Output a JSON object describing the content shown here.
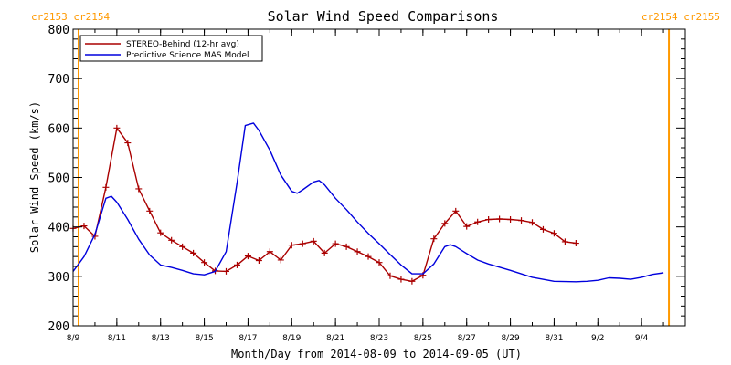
{
  "header": {
    "left_rotation": "cr2153 cr2154",
    "right_rotation": "cr2154 cr2155"
  },
  "colors": {
    "stereo": "#aa0000",
    "model": "#0000dd",
    "rotation_marker": "#ff9900",
    "axis": "#000000"
  },
  "chart_data": {
    "type": "line",
    "title": "Solar Wind Speed Comparisons",
    "xlabel": "Month/Day from 2014-08-09 to 2014-09-05 (UT)",
    "ylabel": "Solar Wind Speed (km/s)",
    "xlim": [
      "2014-08-09",
      "2014-09-05"
    ],
    "ylim": [
      200,
      800
    ],
    "x_ticks": [
      {
        "date": "2014-08-09",
        "label": "8/9"
      },
      {
        "date": "2014-08-11",
        "label": "8/11"
      },
      {
        "date": "2014-08-13",
        "label": "8/13"
      },
      {
        "date": "2014-08-15",
        "label": "8/15"
      },
      {
        "date": "2014-08-17",
        "label": "8/17"
      },
      {
        "date": "2014-08-19",
        "label": "8/19"
      },
      {
        "date": "2014-08-21",
        "label": "8/21"
      },
      {
        "date": "2014-08-23",
        "label": "8/23"
      },
      {
        "date": "2014-08-25",
        "label": "8/25"
      },
      {
        "date": "2014-08-27",
        "label": "8/27"
      },
      {
        "date": "2014-08-29",
        "label": "8/29"
      },
      {
        "date": "2014-08-31",
        "label": "8/31"
      },
      {
        "date": "2014-09-02",
        "label": "9/2"
      },
      {
        "date": "2014-09-04",
        "label": "9/4"
      }
    ],
    "y_ticks": [
      200,
      300,
      400,
      500,
      600,
      700,
      800
    ],
    "rotation_boundaries": [
      "2014-08-09 06:00",
      "2014-09-05 06:00"
    ],
    "legend_position": "top-left",
    "series": [
      {
        "name": "STEREO-Behind (12-hr avg)",
        "color": "#aa0000",
        "markers": true,
        "points": [
          [
            "2014-08-09 00:00",
            397
          ],
          [
            "2014-08-09 12:00",
            402
          ],
          [
            "2014-08-10 00:00",
            381
          ],
          [
            "2014-08-10 12:00",
            480
          ],
          [
            "2014-08-11 00:00",
            600
          ],
          [
            "2014-08-11 12:00",
            570
          ],
          [
            "2014-08-12 00:00",
            477
          ],
          [
            "2014-08-12 12:00",
            432
          ],
          [
            "2014-08-13 00:00",
            388
          ],
          [
            "2014-08-13 12:00",
            373
          ],
          [
            "2014-08-14 00:00",
            360
          ],
          [
            "2014-08-14 12:00",
            347
          ],
          [
            "2014-08-15 00:00",
            328
          ],
          [
            "2014-08-15 12:00",
            311
          ],
          [
            "2014-08-16 00:00",
            310
          ],
          [
            "2014-08-16 12:00",
            323
          ],
          [
            "2014-08-17 00:00",
            341
          ],
          [
            "2014-08-17 12:00",
            332
          ],
          [
            "2014-08-18 00:00",
            350
          ],
          [
            "2014-08-18 12:00",
            333
          ],
          [
            "2014-08-19 00:00",
            363
          ],
          [
            "2014-08-19 12:00",
            366
          ],
          [
            "2014-08-20 00:00",
            371
          ],
          [
            "2014-08-20 12:00",
            347
          ],
          [
            "2014-08-21 00:00",
            366
          ],
          [
            "2014-08-21 12:00",
            360
          ],
          [
            "2014-08-22 00:00",
            350
          ],
          [
            "2014-08-22 12:00",
            340
          ],
          [
            "2014-08-23 00:00",
            328
          ],
          [
            "2014-08-23 12:00",
            301
          ],
          [
            "2014-08-24 00:00",
            294
          ],
          [
            "2014-08-24 12:00",
            290
          ],
          [
            "2014-08-25 00:00",
            302
          ],
          [
            "2014-08-25 12:00",
            376
          ],
          [
            "2014-08-26 00:00",
            407
          ],
          [
            "2014-08-26 12:00",
            432
          ],
          [
            "2014-08-27 00:00",
            401
          ],
          [
            "2014-08-27 12:00",
            410
          ],
          [
            "2014-08-28 00:00",
            415
          ],
          [
            "2014-08-28 12:00",
            416
          ],
          [
            "2014-08-29 00:00",
            415
          ],
          [
            "2014-08-29 12:00",
            413
          ],
          [
            "2014-08-30 00:00",
            409
          ],
          [
            "2014-08-30 12:00",
            395
          ],
          [
            "2014-08-31 00:00",
            387
          ],
          [
            "2014-08-31 12:00",
            370
          ],
          [
            "2014-09-01 00:00",
            367
          ]
        ]
      },
      {
        "name": "Predictive Science MAS Model",
        "color": "#0000dd",
        "markers": false,
        "points": [
          [
            "2014-08-09 00:00",
            310
          ],
          [
            "2014-08-09 12:00",
            340
          ],
          [
            "2014-08-10 00:00",
            385
          ],
          [
            "2014-08-10 12:00",
            458
          ],
          [
            "2014-08-10 18:00",
            462
          ],
          [
            "2014-08-11 00:00",
            450
          ],
          [
            "2014-08-11 12:00",
            415
          ],
          [
            "2014-08-12 00:00",
            375
          ],
          [
            "2014-08-12 12:00",
            343
          ],
          [
            "2014-08-13 00:00",
            323
          ],
          [
            "2014-08-13 12:00",
            318
          ],
          [
            "2014-08-14 00:00",
            312
          ],
          [
            "2014-08-14 12:00",
            305
          ],
          [
            "2014-08-15 00:00",
            303
          ],
          [
            "2014-08-15 12:00",
            310
          ],
          [
            "2014-08-16 00:00",
            350
          ],
          [
            "2014-08-16 12:00",
            490
          ],
          [
            "2014-08-16 21:00",
            605
          ],
          [
            "2014-08-17 06:00",
            610
          ],
          [
            "2014-08-17 12:00",
            595
          ],
          [
            "2014-08-18 00:00",
            555
          ],
          [
            "2014-08-18 12:00",
            505
          ],
          [
            "2014-08-19 00:00",
            472
          ],
          [
            "2014-08-19 06:00",
            468
          ],
          [
            "2014-08-19 12:00",
            475
          ],
          [
            "2014-08-20 00:00",
            491
          ],
          [
            "2014-08-20 06:00",
            494
          ],
          [
            "2014-08-20 12:00",
            485
          ],
          [
            "2014-08-21 00:00",
            458
          ],
          [
            "2014-08-21 12:00",
            435
          ],
          [
            "2014-08-22 00:00",
            410
          ],
          [
            "2014-08-22 12:00",
            387
          ],
          [
            "2014-08-23 00:00",
            366
          ],
          [
            "2014-08-23 12:00",
            344
          ],
          [
            "2014-08-24 00:00",
            323
          ],
          [
            "2014-08-24 12:00",
            305
          ],
          [
            "2014-08-25 00:00",
            305
          ],
          [
            "2014-08-25 12:00",
            325
          ],
          [
            "2014-08-26 00:00",
            360
          ],
          [
            "2014-08-26 06:00",
            364
          ],
          [
            "2014-08-26 12:00",
            360
          ],
          [
            "2014-08-27 00:00",
            346
          ],
          [
            "2014-08-27 12:00",
            333
          ],
          [
            "2014-08-28 00:00",
            325
          ],
          [
            "2014-08-29 00:00",
            312
          ],
          [
            "2014-08-30 00:00",
            298
          ],
          [
            "2014-08-31 00:00",
            290
          ],
          [
            "2014-09-01 00:00",
            289
          ],
          [
            "2014-09-01 12:00",
            290
          ],
          [
            "2014-09-02 00:00",
            292
          ],
          [
            "2014-09-02 12:00",
            297
          ],
          [
            "2014-09-03 00:00",
            296
          ],
          [
            "2014-09-03 12:00",
            294
          ],
          [
            "2014-09-04 00:00",
            298
          ],
          [
            "2014-09-04 12:00",
            304
          ],
          [
            "2014-09-05 00:00",
            307
          ]
        ]
      }
    ]
  }
}
